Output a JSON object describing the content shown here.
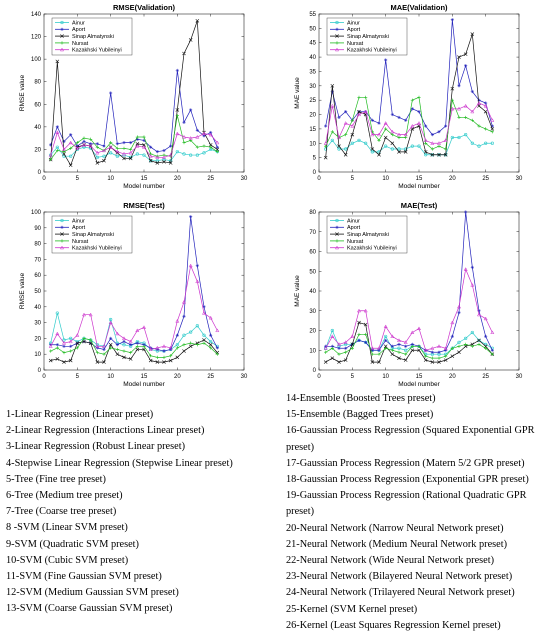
{
  "colors": {
    "series": [
      "#33cccc",
      "#2222bb",
      "#111111",
      "#22bb22",
      "#cc33cc"
    ]
  },
  "chart_data": [
    {
      "type": "line",
      "title": "RMSE(Validation)",
      "xlabel": "Model number",
      "ylabel": "RMSE value",
      "xlim": [
        0,
        30
      ],
      "ylim": [
        0,
        140
      ],
      "xticks": [
        0,
        5,
        10,
        15,
        20,
        25,
        30
      ],
      "yticks": [
        0,
        20,
        40,
        60,
        80,
        100,
        120,
        140
      ],
      "legend_position": "top-left",
      "x": [
        1,
        2,
        3,
        4,
        5,
        6,
        7,
        8,
        9,
        10,
        11,
        12,
        13,
        14,
        15,
        16,
        17,
        18,
        19,
        20,
        21,
        22,
        23,
        24,
        25,
        26
      ],
      "series": [
        {
          "name": "Ainur",
          "values": [
            15,
            22,
            14,
            14,
            20,
            22,
            21,
            13,
            14,
            17,
            14,
            15,
            13,
            16,
            15,
            10,
            10,
            11,
            10,
            18,
            16,
            15,
            15,
            17,
            20,
            18
          ]
        },
        {
          "name": "Aport",
          "values": [
            24,
            40,
            27,
            33,
            23,
            27,
            25,
            25,
            23,
            70,
            25,
            26,
            26,
            29,
            28,
            22,
            18,
            19,
            23,
            90,
            44,
            55,
            37,
            32,
            35,
            22
          ]
        },
        {
          "name": "Sinap Almatynski",
          "values": [
            11,
            98,
            16,
            6,
            22,
            24,
            23,
            8,
            10,
            22,
            17,
            12,
            12,
            25,
            24,
            10,
            8,
            9,
            8,
            55,
            105,
            117,
            134,
            35,
            24,
            20
          ]
        },
        {
          "name": "Nursat",
          "values": [
            11,
            19,
            18,
            21,
            26,
            30,
            29,
            22,
            19,
            26,
            21,
            21,
            20,
            31,
            31,
            16,
            14,
            15,
            14,
            50,
            26,
            28,
            22,
            23,
            22,
            18
          ]
        },
        {
          "name": "Kazakhski Yubileinyi",
          "values": [
            15,
            35,
            20,
            26,
            21,
            24,
            23,
            17,
            19,
            22,
            18,
            16,
            17,
            23,
            22,
            14,
            13,
            13,
            15,
            34,
            31,
            30,
            31,
            34,
            33,
            26
          ]
        }
      ]
    },
    {
      "type": "line",
      "title": "MAE(Validation)",
      "xlabel": "Model number",
      "ylabel": "MAE value",
      "xlim": [
        0,
        30
      ],
      "ylim": [
        0,
        55
      ],
      "xticks": [
        0,
        5,
        10,
        15,
        20,
        25,
        30
      ],
      "yticks": [
        0,
        5,
        10,
        15,
        20,
        25,
        30,
        35,
        40,
        45,
        50,
        55
      ],
      "legend_position": "top-left",
      "x": [
        1,
        2,
        3,
        4,
        5,
        6,
        7,
        8,
        9,
        10,
        11,
        12,
        13,
        14,
        15,
        16,
        17,
        18,
        19,
        20,
        21,
        22,
        23,
        24,
        25,
        26
      ],
      "series": [
        {
          "name": "Ainur",
          "values": [
            8,
            11,
            8,
            8,
            10,
            11,
            10,
            7,
            7,
            9,
            8,
            8,
            8,
            9,
            9,
            6,
            6,
            6,
            6,
            12,
            12,
            13,
            10,
            9,
            10,
            10
          ]
        },
        {
          "name": "Aport",
          "values": [
            16,
            28,
            19,
            21,
            18,
            21,
            21,
            18,
            17,
            39,
            20,
            19,
            18,
            22,
            21,
            16,
            13,
            14,
            16,
            53,
            30,
            37,
            28,
            25,
            24,
            16
          ]
        },
        {
          "name": "Sinap Almatynski",
          "values": [
            5,
            30,
            9,
            6,
            13,
            21,
            20,
            8,
            6,
            12,
            10,
            7,
            7,
            15,
            16,
            7,
            6,
            6,
            6,
            29,
            40,
            41,
            48,
            23,
            21,
            15
          ]
        },
        {
          "name": "Nursat",
          "values": [
            9,
            14,
            12,
            13,
            18,
            26,
            26,
            14,
            11,
            15,
            13,
            12,
            12,
            25,
            26,
            10,
            8,
            9,
            8,
            25,
            19,
            19,
            18,
            16,
            15,
            14
          ]
        },
        {
          "name": "Kazakhski Yubileinyi",
          "values": [
            10,
            23,
            12,
            17,
            16,
            20,
            21,
            13,
            13,
            17,
            14,
            13,
            13,
            16,
            17,
            11,
            10,
            10,
            11,
            22,
            22,
            23,
            21,
            24,
            23,
            18
          ]
        }
      ]
    },
    {
      "type": "line",
      "title": "RMSE(Test)",
      "xlabel": "Model number",
      "ylabel": "RMSE value",
      "xlim": [
        0,
        30
      ],
      "ylim": [
        0,
        100
      ],
      "xticks": [
        0,
        5,
        10,
        15,
        20,
        25,
        30
      ],
      "yticks": [
        0,
        10,
        20,
        30,
        40,
        50,
        60,
        70,
        80,
        90,
        100
      ],
      "legend_position": "top-left",
      "x": [
        1,
        2,
        3,
        4,
        5,
        6,
        7,
        8,
        9,
        10,
        11,
        12,
        13,
        14,
        15,
        16,
        17,
        18,
        19,
        20,
        21,
        22,
        23,
        24,
        25,
        26
      ],
      "series": [
        {
          "name": "Ainur",
          "values": [
            17,
            36,
            19,
            20,
            18,
            20,
            19,
            16,
            15,
            32,
            17,
            16,
            15,
            18,
            17,
            13,
            12,
            12,
            13,
            16,
            22,
            24,
            28,
            22,
            18,
            15
          ]
        },
        {
          "name": "Aport",
          "values": [
            16,
            16,
            15,
            15,
            17,
            18,
            17,
            14,
            13,
            20,
            16,
            18,
            16,
            17,
            16,
            14,
            13,
            12,
            13,
            22,
            34,
            97,
            66,
            40,
            22,
            14
          ]
        },
        {
          "name": "Sinap Almatynski",
          "values": [
            6,
            7,
            5,
            6,
            17,
            18,
            17,
            5,
            5,
            16,
            10,
            8,
            7,
            13,
            13,
            6,
            5,
            5,
            6,
            8,
            12,
            15,
            17,
            19,
            16,
            11
          ]
        },
        {
          "name": "Nursat",
          "values": [
            12,
            14,
            11,
            12,
            14,
            20,
            19,
            11,
            10,
            14,
            13,
            12,
            11,
            15,
            15,
            9,
            8,
            8,
            9,
            14,
            16,
            17,
            16,
            17,
            14,
            10
          ]
        },
        {
          "name": "Kazakhski Yubileinyi",
          "values": [
            15,
            23,
            17,
            18,
            22,
            35,
            35,
            15,
            15,
            30,
            23,
            20,
            18,
            25,
            27,
            13,
            14,
            15,
            14,
            31,
            43,
            66,
            56,
            36,
            33,
            25
          ]
        }
      ]
    },
    {
      "type": "line",
      "title": "MAE(Test)",
      "xlabel": "Model number",
      "ylabel": "MAE value",
      "xlim": [
        0,
        30
      ],
      "ylim": [
        0,
        80
      ],
      "xticks": [
        0,
        5,
        10,
        15,
        20,
        25,
        30
      ],
      "yticks": [
        0,
        10,
        20,
        30,
        40,
        50,
        60,
        70,
        80
      ],
      "legend_position": "top-left",
      "x": [
        1,
        2,
        3,
        4,
        5,
        6,
        7,
        8,
        9,
        10,
        11,
        12,
        13,
        14,
        15,
        16,
        17,
        18,
        19,
        20,
        21,
        22,
        23,
        24,
        25,
        26
      ],
      "series": [
        {
          "name": "Ainur",
          "values": [
            11,
            20,
            12,
            13,
            13,
            15,
            14,
            10,
            10,
            17,
            11,
            11,
            10,
            12,
            12,
            8,
            8,
            8,
            8,
            11,
            14,
            16,
            19,
            15,
            13,
            11
          ]
        },
        {
          "name": "Aport",
          "values": [
            12,
            12,
            11,
            11,
            13,
            15,
            14,
            10,
            10,
            15,
            12,
            13,
            12,
            13,
            12,
            10,
            9,
            9,
            10,
            17,
            29,
            80,
            52,
            30,
            17,
            10
          ]
        },
        {
          "name": "Sinap Almatynski",
          "values": [
            4,
            6,
            4,
            5,
            13,
            24,
            23,
            4,
            4,
            12,
            8,
            6,
            5,
            10,
            10,
            5,
            4,
            4,
            5,
            7,
            9,
            12,
            13,
            15,
            12,
            8
          ]
        },
        {
          "name": "Nursat",
          "values": [
            9,
            11,
            8,
            9,
            11,
            18,
            18,
            8,
            8,
            11,
            10,
            9,
            8,
            12,
            12,
            7,
            6,
            6,
            7,
            11,
            12,
            13,
            12,
            13,
            11,
            8
          ]
        },
        {
          "name": "Kazakhski Yubileinyi",
          "values": [
            11,
            17,
            13,
            14,
            17,
            30,
            30,
            11,
            11,
            22,
            17,
            15,
            14,
            19,
            21,
            10,
            11,
            12,
            11,
            24,
            32,
            51,
            43,
            28,
            26,
            19
          ]
        }
      ]
    }
  ],
  "model_list": {
    "left": [
      "1-Linear Regression (Linear preset)",
      "2-Linear Regression (Interactions Linear preset)",
      "3-Linear Regression (Robust Linear preset)",
      "4-Stepwise Linear Regression (Stepwise Linear preset)",
      "5-Tree (Fine tree preset)",
      "6-Tree (Medium tree preset)",
      "7-Tree (Coarse tree preset)",
      "8 -SVM (Linear SVM preset)",
      "9-SVM (Quadratic SVM preset)",
      "10-SVM (Cubic SVM preset)",
      "11-SVM (Fine Gaussian SVM preset)",
      "12-SVM (Medium Gaussian SVM preset)",
      "13-SVM (Coarse Gaussian SVM preset)"
    ],
    "right": [
      "14-Ensemble (Boosted Trees preset)",
      "15-Ensemble (Bagged Trees preset)",
      "16-Gaussian Process Regression (Squared Exponential GPR",
      "preset)",
      "17-Gaussian Process Regression (Matern 5/2 GPR preset)",
      "18-Gaussian Process Regression (Exponential GPR preset)",
      "19-Gaussian Process Regression (Rational Quadratic GPR",
      "preset)",
      "20-Neural Network (Narrow Neural Network preset)",
      "21-Neural Network (Medium Neural Network preset)",
      "22-Neural Network (Wide Neural Network preset)",
      "23-Neural Network (Bilayered Neural Network preset)",
      "24-Neural Network (Trilayered Neural Network preset)",
      "25-Kernel (SVM Kernel preset)",
      "26-Kernel (Least Squares Regression Kernel preset)"
    ]
  }
}
